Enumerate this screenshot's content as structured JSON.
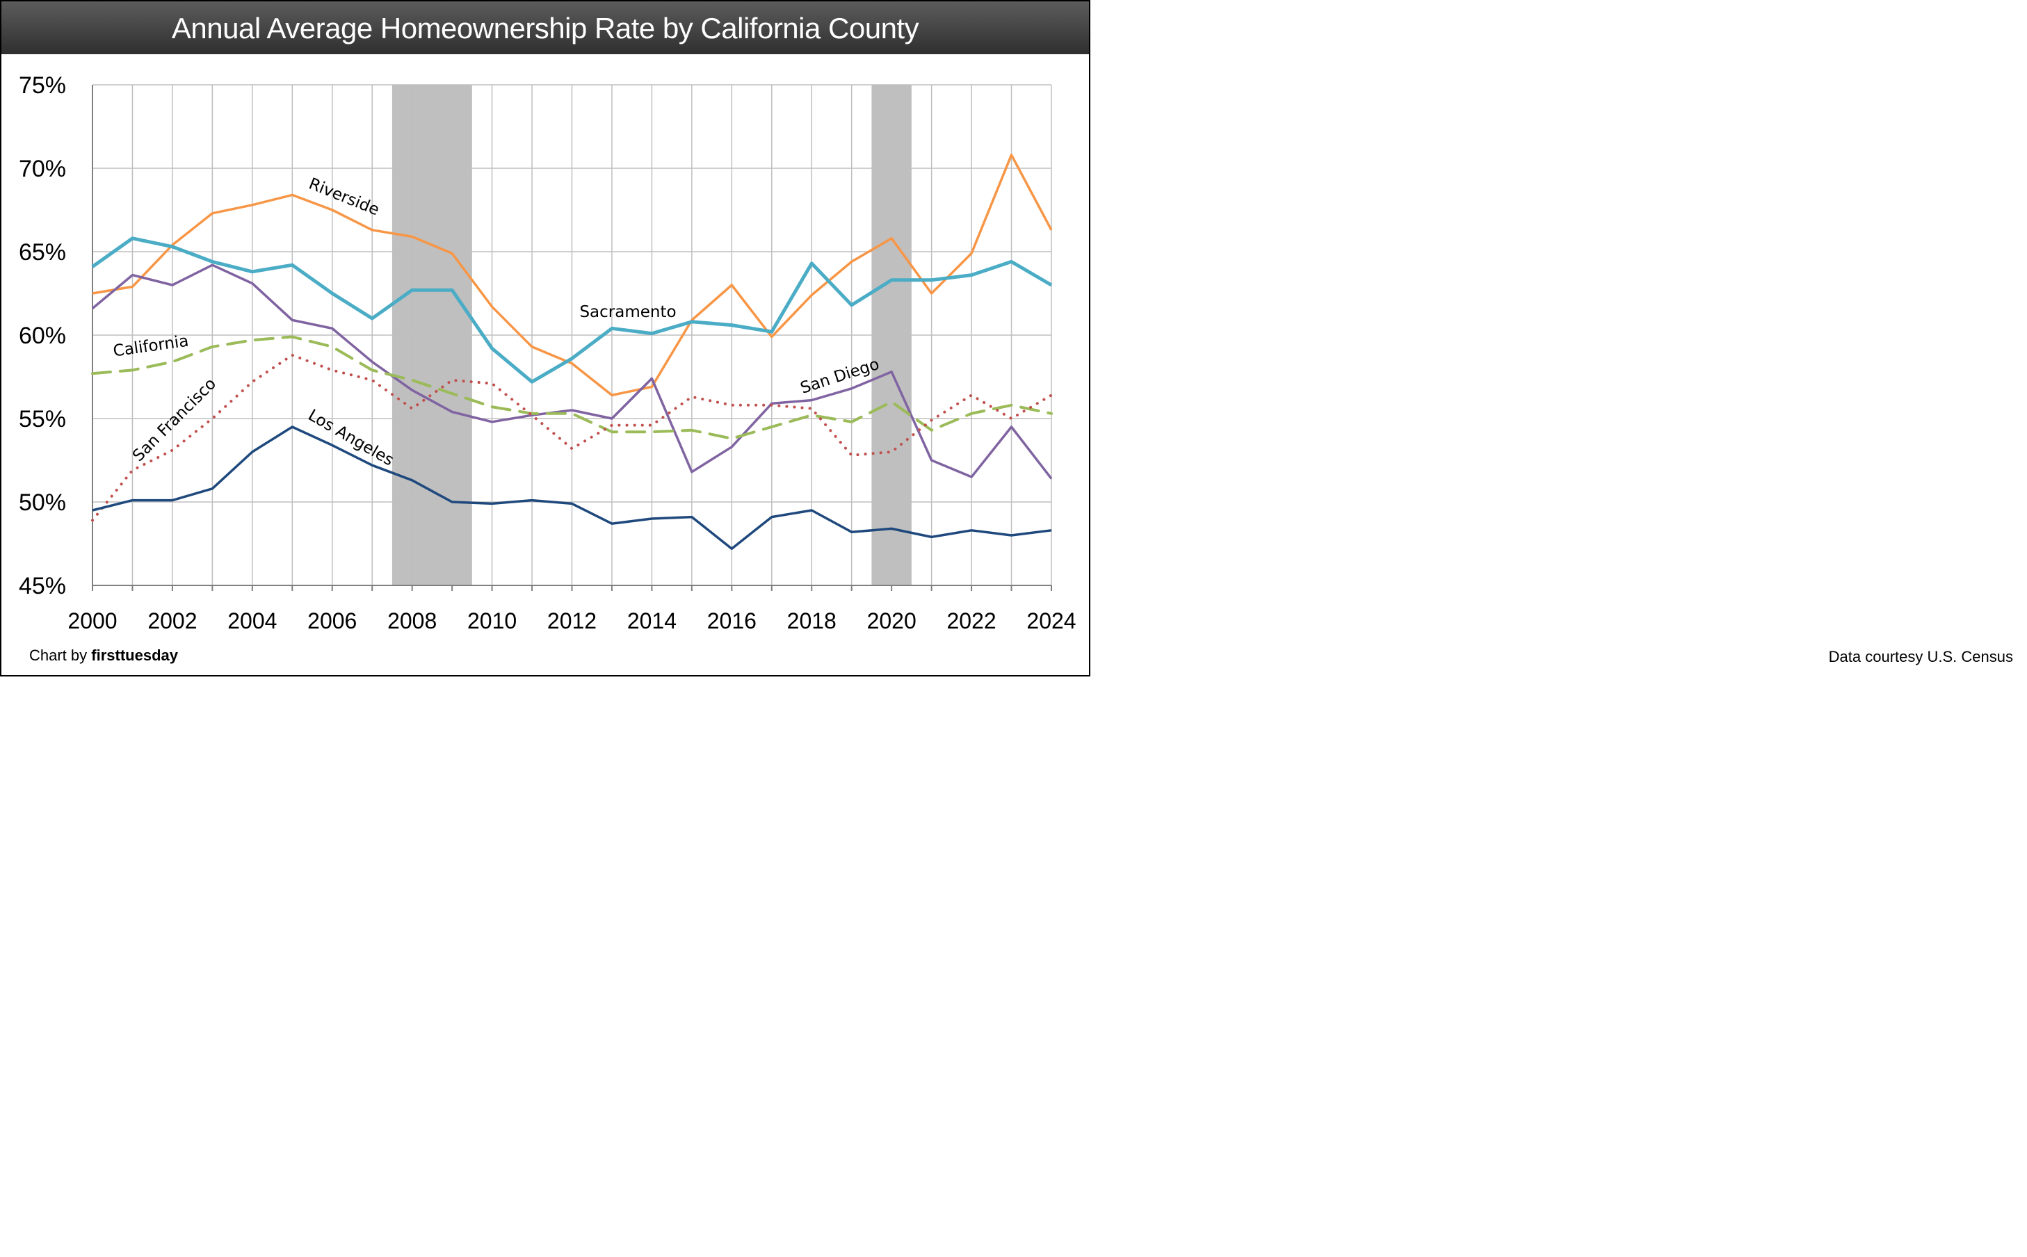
{
  "chart_data": {
    "type": "line",
    "title": "Annual Average Homeownership Rate by California County",
    "xlabel": "",
    "ylabel": "",
    "x": [
      2000,
      2001,
      2002,
      2003,
      2004,
      2005,
      2006,
      2007,
      2008,
      2009,
      2010,
      2011,
      2012,
      2013,
      2014,
      2015,
      2016,
      2017,
      2018,
      2019,
      2020,
      2021,
      2022,
      2023,
      2024
    ],
    "xticks": [
      "2000",
      "2002",
      "2004",
      "2006",
      "2008",
      "2010",
      "2012",
      "2014",
      "2016",
      "2018",
      "2020",
      "2022",
      "2024"
    ],
    "yticks": [
      "45%",
      "50%",
      "55%",
      "60%",
      "65%",
      "70%",
      "75%"
    ],
    "ylim": [
      45,
      75
    ],
    "xlim": [
      2000,
      2024
    ],
    "grid": true,
    "legend": "none (inline series labels)",
    "recessions": [
      {
        "label": "2008 recession",
        "start": 2007.5,
        "end": 2009.5,
        "color": "#bfbfbf"
      },
      {
        "label": "2020 recession",
        "start": 2019.5,
        "end": 2020.5,
        "color": "#bfbfbf"
      }
    ],
    "series": [
      {
        "name": "Riverside",
        "color": "#f79646",
        "style": "solid",
        "label_text": "Riverside",
        "values": [
          62.5,
          62.9,
          65.4,
          67.3,
          67.8,
          68.4,
          67.5,
          66.3,
          65.9,
          64.9,
          61.7,
          59.3,
          58.3,
          56.4,
          56.9,
          60.9,
          63.0,
          59.9,
          62.4,
          64.4,
          65.8,
          62.5,
          64.9,
          70.8,
          66.3
        ]
      },
      {
        "name": "Sacramento",
        "color": "#4bacc6",
        "style": "solid-thick",
        "label_text": "Sacramento",
        "values": [
          64.1,
          65.8,
          65.3,
          64.4,
          63.8,
          64.2,
          62.5,
          61.0,
          62.7,
          62.7,
          59.2,
          57.2,
          58.6,
          60.4,
          60.1,
          60.8,
          60.6,
          60.2,
          64.3,
          61.8,
          63.3,
          63.3,
          63.6,
          64.4,
          63.0
        ]
      },
      {
        "name": "San Diego",
        "color": "#8064a2",
        "style": "solid",
        "label_text": "San Diego",
        "values": [
          61.6,
          63.6,
          63.0,
          64.2,
          63.1,
          60.9,
          60.4,
          58.4,
          56.7,
          55.4,
          54.8,
          55.2,
          55.5,
          55.0,
          57.4,
          51.8,
          53.3,
          55.9,
          56.1,
          56.8,
          57.8,
          52.5,
          51.5,
          54.5,
          51.4
        ]
      },
      {
        "name": "California",
        "color": "#9bbb59",
        "style": "dashed",
        "label_text": "California",
        "values": [
          57.7,
          57.9,
          58.4,
          59.3,
          59.7,
          59.9,
          59.3,
          57.9,
          57.3,
          56.5,
          55.7,
          55.3,
          55.3,
          54.2,
          54.2,
          54.3,
          53.8,
          54.5,
          55.2,
          54.8,
          56.0,
          54.3,
          55.3,
          55.8,
          55.3
        ]
      },
      {
        "name": "San Francisco",
        "color": "#c0504d",
        "style": "dotted",
        "label_text": "San Francisco",
        "values": [
          48.9,
          51.9,
          53.1,
          55.0,
          57.2,
          58.8,
          57.9,
          57.3,
          55.6,
          57.3,
          57.1,
          55.2,
          53.2,
          54.6,
          54.6,
          56.3,
          55.8,
          55.8,
          55.6,
          52.8,
          53.0,
          54.9,
          56.4,
          55.0,
          56.4
        ]
      },
      {
        "name": "Los Angeles",
        "color": "#1f497d",
        "style": "solid",
        "label_text": "Los Angeles",
        "values": [
          49.5,
          50.1,
          50.1,
          50.8,
          53.0,
          54.5,
          53.4,
          52.2,
          51.3,
          50.0,
          49.9,
          50.1,
          49.9,
          48.7,
          49.0,
          49.1,
          47.2,
          49.1,
          49.5,
          48.2,
          48.4,
          47.9,
          48.3,
          48.0,
          48.3
        ]
      }
    ]
  },
  "footer": {
    "credit_prefix": "Chart by ",
    "credit_brand": "firsttuesday",
    "source": "Data courtesy U.S. Census"
  }
}
